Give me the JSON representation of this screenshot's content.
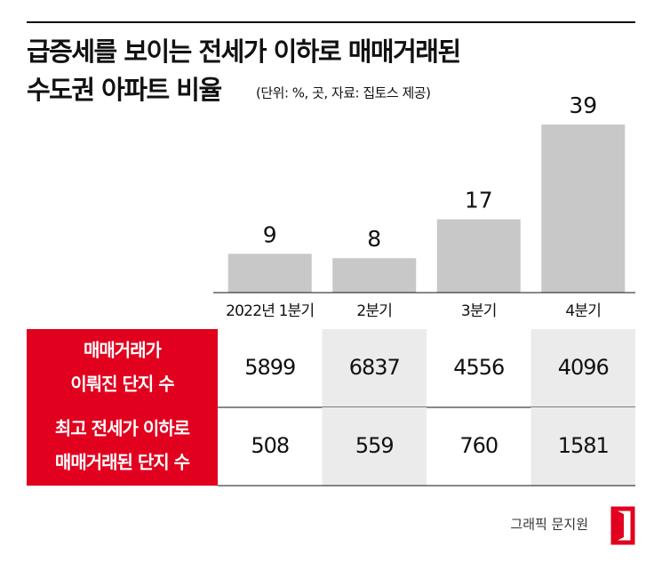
{
  "chart_data": {
    "type": "bar",
    "title": [
      "급증세를 보이는 전세가 이하로 매매거래된",
      "수도권 아파트 비율"
    ],
    "subtitle": "(단위: %, 곳, 자료: 집토스 제공)",
    "categories": [
      "2022년 1분기",
      "2분기",
      "3분기",
      "4분기"
    ],
    "values": [
      9,
      8,
      17,
      39
    ],
    "color": "#c8c8c8"
  },
  "table": {
    "row_headers": [
      [
        "매매거래가",
        "이뤄진 단지 수"
      ],
      [
        "최고 전세가 이하로",
        "매매거래된 단지 수"
      ]
    ],
    "rows": [
      [
        5899,
        6837,
        4556,
        4096
      ],
      [
        508,
        559,
        760,
        1581
      ]
    ],
    "header_color": "#e1001e",
    "shade_color": "#ebebeb"
  },
  "credit": "그래픽 문지원"
}
